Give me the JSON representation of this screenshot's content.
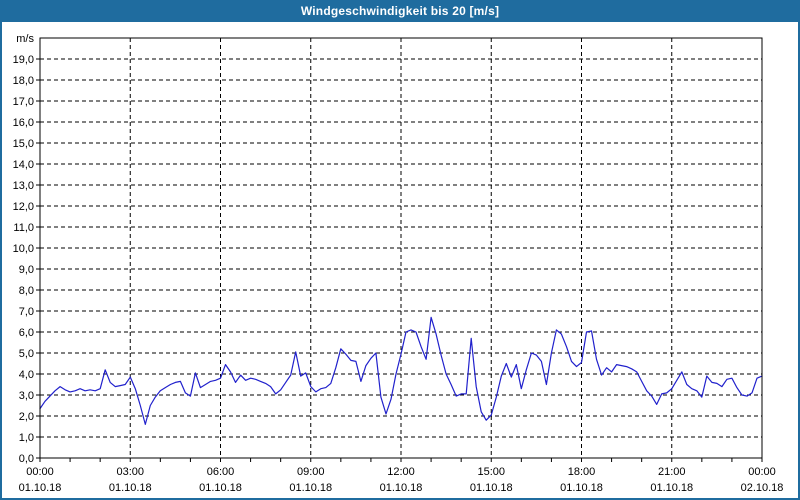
{
  "window": {
    "title": "Windgeschwindigkeit bis 20 [m/s]"
  },
  "colors": {
    "accent": "#1f6c9f",
    "line": "#2121cc",
    "grid": "#000000",
    "axis": "#000000",
    "label": "#000000",
    "plot_background": "#ffffff"
  },
  "chart_data": {
    "type": "line",
    "title": "Windgeschwindigkeit bis 20 [m/s]",
    "ylabel": "m/s",
    "y_unit_label": "m/s",
    "ylim": [
      0,
      20
    ],
    "ytick_step": 1,
    "ytick_labels": [
      "0,0",
      "1,0",
      "2,0",
      "3,0",
      "4,0",
      "5,0",
      "6,0",
      "7,0",
      "8,0",
      "9,0",
      "10,0",
      "11,0",
      "12,0",
      "13,0",
      "14,0",
      "15,0",
      "16,0",
      "17,0",
      "18,0",
      "19,0"
    ],
    "x_range_min": [
      0,
      1440
    ],
    "x_minor_tick_step_min": 60,
    "grid": "dashed",
    "legend": "none",
    "xtick_labels": [
      {
        "min": 0,
        "time": "00:00",
        "date": "01.10.18"
      },
      {
        "min": 180,
        "time": "03:00",
        "date": "01.10.18"
      },
      {
        "min": 360,
        "time": "06:00",
        "date": "01.10.18"
      },
      {
        "min": 540,
        "time": "09:00",
        "date": "01.10.18"
      },
      {
        "min": 720,
        "time": "12:00",
        "date": "01.10.18"
      },
      {
        "min": 900,
        "time": "15:00",
        "date": "01.10.18"
      },
      {
        "min": 1080,
        "time": "18:00",
        "date": "01.10.18"
      },
      {
        "min": 1260,
        "time": "21:00",
        "date": "01.10.18"
      },
      {
        "min": 1440,
        "time": "00:00",
        "date": "02.10.18"
      }
    ],
    "series": [
      {
        "name": "Windgeschwindigkeit",
        "unit": "m/s",
        "color": "#2121cc",
        "x_minutes": [
          0,
          10,
          20,
          30,
          40,
          50,
          60,
          70,
          80,
          90,
          100,
          110,
          120,
          130,
          140,
          150,
          160,
          170,
          180,
          190,
          200,
          210,
          220,
          230,
          240,
          250,
          260,
          270,
          280,
          290,
          300,
          310,
          320,
          330,
          340,
          350,
          360,
          370,
          380,
          390,
          400,
          410,
          420,
          430,
          440,
          450,
          460,
          470,
          480,
          490,
          500,
          510,
          520,
          530,
          540,
          550,
          560,
          570,
          580,
          590,
          600,
          610,
          620,
          630,
          640,
          650,
          660,
          670,
          680,
          690,
          700,
          710,
          720,
          730,
          740,
          750,
          760,
          770,
          780,
          790,
          800,
          810,
          820,
          830,
          840,
          850,
          860,
          870,
          880,
          890,
          900,
          910,
          920,
          930,
          940,
          950,
          960,
          970,
          980,
          990,
          1000,
          1010,
          1020,
          1030,
          1040,
          1050,
          1060,
          1070,
          1080,
          1090,
          1100,
          1110,
          1120,
          1130,
          1140,
          1150,
          1160,
          1170,
          1180,
          1190,
          1200,
          1210,
          1220,
          1230,
          1240,
          1250,
          1260,
          1270,
          1280,
          1290,
          1300,
          1310,
          1320,
          1330,
          1340,
          1350,
          1360,
          1370,
          1380,
          1390,
          1400,
          1410,
          1420,
          1430,
          1440
        ],
        "values": [
          2.35,
          2.7,
          2.95,
          3.2,
          3.4,
          3.25,
          3.15,
          3.2,
          3.3,
          3.2,
          3.25,
          3.2,
          3.3,
          4.2,
          3.6,
          3.4,
          3.45,
          3.5,
          3.85,
          3.3,
          2.5,
          1.6,
          2.5,
          2.9,
          3.2,
          3.35,
          3.5,
          3.6,
          3.65,
          3.1,
          2.95,
          4.05,
          3.35,
          3.5,
          3.65,
          3.7,
          3.8,
          4.45,
          4.1,
          3.6,
          3.95,
          3.7,
          3.8,
          3.75,
          3.65,
          3.55,
          3.4,
          3.05,
          3.25,
          3.6,
          3.95,
          5.05,
          3.9,
          4.05,
          3.4,
          3.15,
          3.3,
          3.35,
          3.55,
          4.3,
          5.2,
          4.95,
          4.65,
          4.6,
          3.65,
          4.4,
          4.75,
          5.0,
          2.9,
          2.1,
          2.8,
          4.0,
          4.95,
          6.0,
          6.1,
          6.0,
          5.3,
          4.7,
          6.7,
          5.9,
          4.9,
          4.0,
          3.5,
          2.95,
          3.05,
          3.05,
          5.7,
          3.4,
          2.2,
          1.8,
          2.05,
          2.9,
          3.9,
          4.5,
          3.85,
          4.45,
          3.3,
          4.2,
          5.0,
          4.9,
          4.6,
          3.5,
          5.0,
          6.1,
          5.9,
          5.3,
          4.6,
          4.35,
          4.55,
          6.0,
          6.05,
          4.7,
          3.95,
          4.3,
          4.1,
          4.45,
          4.4,
          4.35,
          4.25,
          4.1,
          3.65,
          3.2,
          2.95,
          2.55,
          3.05,
          3.1,
          3.3,
          3.7,
          4.1,
          3.5,
          3.3,
          3.2,
          2.9,
          3.9,
          3.6,
          3.55,
          3.4,
          3.75,
          3.8,
          3.35,
          3.0,
          2.95,
          3.1,
          3.8,
          3.9
        ]
      }
    ]
  }
}
